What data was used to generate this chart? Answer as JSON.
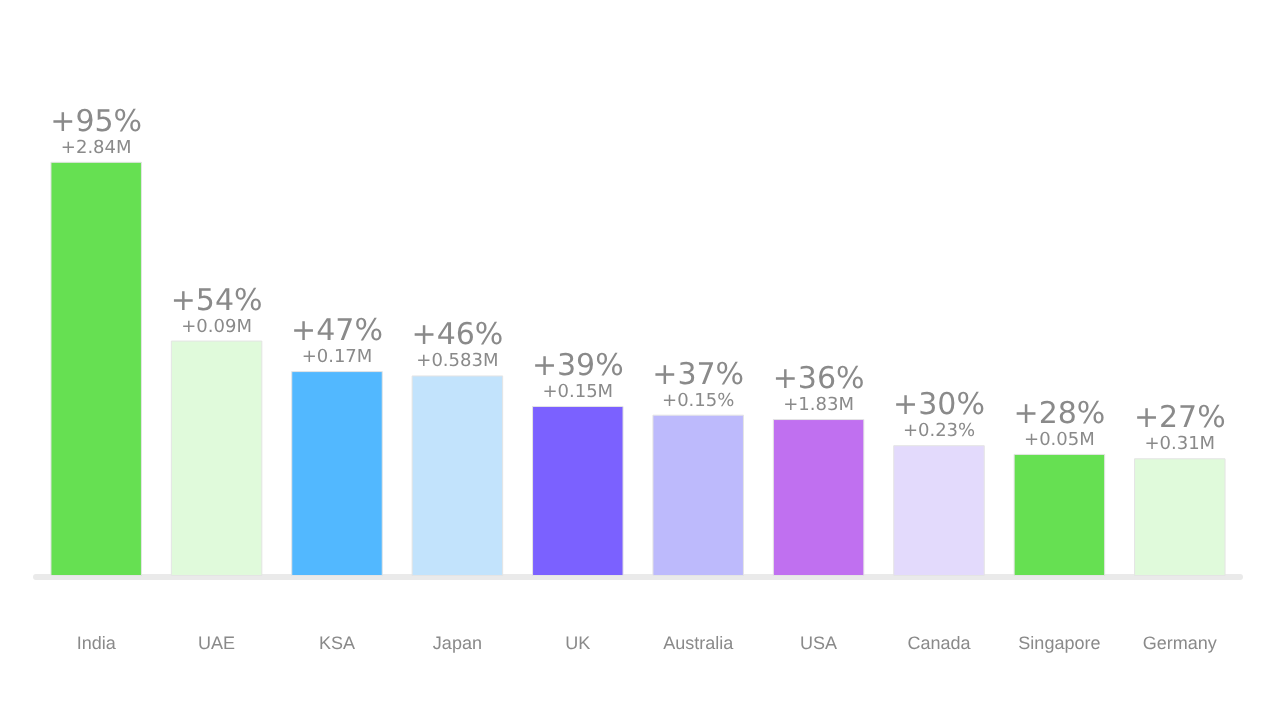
{
  "chart_data": {
    "type": "bar",
    "categories": [
      "India",
      "UAE",
      "KSA",
      "Japan",
      "UK",
      "Australia",
      "USA",
      "Canada",
      "Singapore",
      "Germany"
    ],
    "values": [
      95,
      54,
      47,
      46,
      39,
      37,
      36,
      30,
      28,
      27
    ],
    "colors": [
      "#66e052",
      "#e0fadb",
      "#52b8ff",
      "#c2e3fc",
      "#7b61ff",
      "#bdbafc",
      "#c070f0",
      "#e3dafc",
      "#66e052",
      "#e0fadb"
    ],
    "value_labels": [
      "+95%",
      "+54%",
      "+47%",
      "+46%",
      "+39%",
      "+37%",
      "+36%",
      "+30%",
      "+28%",
      "+27%"
    ],
    "annotations": [
      {
        "text": "+2.84M",
        "x": "India",
        "y": 95
      },
      {
        "text": "+0.09M",
        "x": "UAE",
        "y": 54
      },
      {
        "text": "+0.17M",
        "x": "KSA",
        "y": 47
      },
      {
        "text": "+0.583M",
        "x": "Japan",
        "y": 46
      },
      {
        "text": "+0.15M",
        "x": "UK",
        "y": 39
      },
      {
        "text": "+0.15%",
        "x": "Australia",
        "y": 37
      },
      {
        "text": "+1.83M",
        "x": "USA",
        "y": 36
      },
      {
        "text": "+0.23%",
        "x": "Canada",
        "y": 30
      },
      {
        "text": "+0.05M",
        "x": "Singapore",
        "y": 28
      },
      {
        "text": "+0.31M",
        "x": "Germany",
        "y": 27
      }
    ]
  }
}
